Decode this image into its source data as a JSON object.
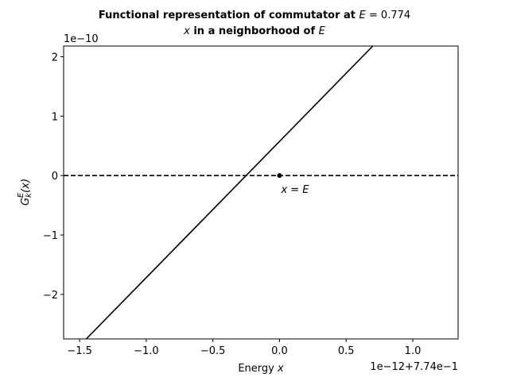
{
  "chart_data": {
    "type": "line",
    "title_line1_prefix": "Functional representation of commutator at ",
    "title_line1_var": "E",
    "title_line1_suffix": " = 0.774",
    "title_line2_var": "x",
    "title_line2_middle": " in a neighborhood of ",
    "title_line2_end": "E",
    "xlabel_text": "Energy ",
    "xlabel_var": "x",
    "ylabel_main": "G",
    "ylabel_sub": "k",
    "ylabel_sup": "E",
    "ylabel_arg": "(x)",
    "x_offset_text": "1e−12+7.74e−1",
    "y_offset_text": "1e−10",
    "xlim": [
      -1.62,
      1.34
    ],
    "ylim": [
      -2.75,
      2.18
    ],
    "x_ticks": [
      -1.5,
      -1.0,
      -0.5,
      0.0,
      0.5,
      1.0
    ],
    "x_tick_labels": [
      "−1.5",
      "−1.0",
      "−0.5",
      "0.0",
      "0.5",
      "1.0"
    ],
    "y_ticks": [
      2,
      1,
      0,
      -1,
      -2
    ],
    "y_tick_labels": [
      "2",
      "1",
      "0",
      "−1",
      "−2"
    ],
    "series": [
      {
        "style": "solid",
        "color": "#000000",
        "x": [
          -1.45,
          0.7
        ],
        "y": [
          -2.75,
          2.18
        ]
      },
      {
        "style": "dashed",
        "color": "#000000",
        "x": [
          -1.62,
          1.34
        ],
        "y": [
          0,
          0
        ]
      }
    ],
    "point": {
      "x": 0.0,
      "y": 0.0,
      "color": "#000000"
    },
    "annotation": {
      "text": "x = E",
      "x": 0.0,
      "y": 0.0
    },
    "grid": false,
    "legend": "none"
  }
}
